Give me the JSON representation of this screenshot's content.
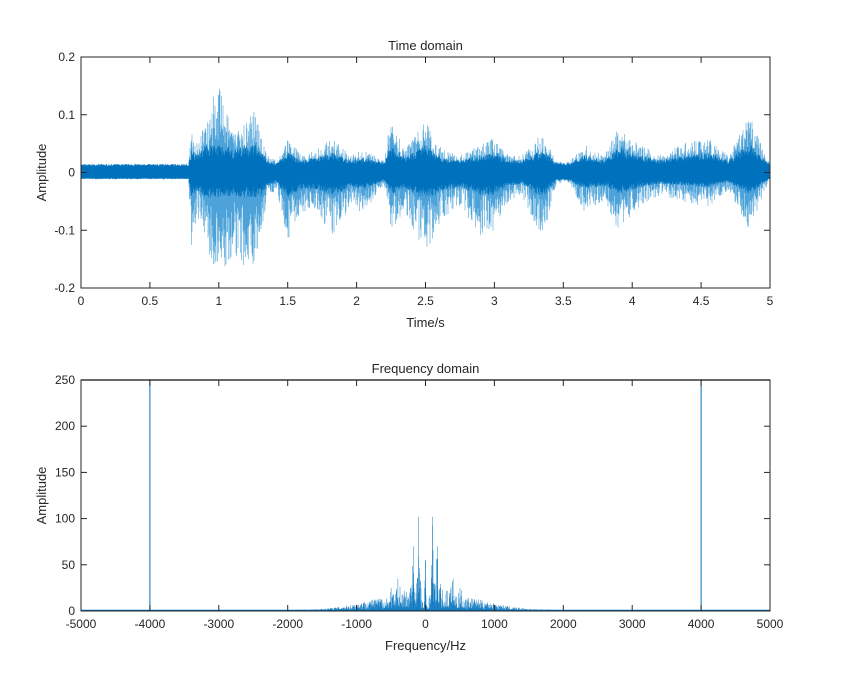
{
  "colors": {
    "line": "#0072BD",
    "line_light": "#4DA3D9",
    "axis": "#262626"
  },
  "chart_data": [
    {
      "type": "line",
      "title": "Time domain",
      "xlabel": "Time/s",
      "ylabel": "Amplitude",
      "xlim": [
        0,
        5
      ],
      "ylim": [
        -0.2,
        0.2
      ],
      "xticks": [
        0,
        0.5,
        1,
        1.5,
        2,
        2.5,
        3,
        3.5,
        4,
        4.5,
        5
      ],
      "xtick_labels": [
        "0",
        "0.5",
        "1",
        "1.5",
        "2",
        "2.5",
        "3",
        "3.5",
        "4",
        "4.5",
        "5"
      ],
      "yticks": [
        -0.2,
        -0.1,
        0,
        0.1,
        0.2
      ],
      "ytick_labels": [
        "-0.2",
        "-0.1",
        "0",
        "0.1",
        "0.2"
      ],
      "grid": false,
      "envelope": {
        "t": [
          0,
          0.78,
          0.8,
          0.85,
          0.95,
          1.0,
          1.1,
          1.2,
          1.27,
          1.35,
          1.42,
          1.5,
          1.6,
          1.7,
          1.83,
          1.95,
          2.05,
          2.2,
          2.25,
          2.35,
          2.5,
          2.62,
          2.75,
          2.9,
          3.0,
          3.1,
          3.2,
          3.35,
          3.45,
          3.55,
          3.65,
          3.8,
          3.9,
          4.05,
          4.2,
          4.35,
          4.55,
          4.7,
          4.85,
          4.95,
          5.0
        ],
        "upper": [
          0.015,
          0.015,
          0.07,
          0.05,
          0.13,
          0.15,
          0.07,
          0.09,
          0.11,
          0.03,
          0.02,
          0.06,
          0.03,
          0.04,
          0.06,
          0.03,
          0.04,
          0.02,
          0.1,
          0.04,
          0.09,
          0.04,
          0.03,
          0.05,
          0.06,
          0.03,
          0.03,
          0.07,
          0.02,
          0.02,
          0.05,
          0.03,
          0.08,
          0.05,
          0.03,
          0.05,
          0.06,
          0.03,
          0.1,
          0.04,
          0.015
        ],
        "lower": [
          -0.012,
          -0.012,
          -0.13,
          -0.08,
          -0.16,
          -0.2,
          -0.14,
          -0.17,
          -0.17,
          -0.05,
          -0.03,
          -0.12,
          -0.07,
          -0.07,
          -0.11,
          -0.06,
          -0.07,
          -0.02,
          -0.1,
          -0.07,
          -0.14,
          -0.08,
          -0.06,
          -0.11,
          -0.1,
          -0.05,
          -0.04,
          -0.12,
          -0.02,
          -0.02,
          -0.07,
          -0.05,
          -0.1,
          -0.06,
          -0.04,
          -0.05,
          -0.06,
          -0.03,
          -0.1,
          -0.04,
          -0.012
        ]
      }
    },
    {
      "type": "line",
      "title": "Frequency domain",
      "xlabel": "Frequency/Hz",
      "ylabel": "Amplitude",
      "xlim": [
        -5000,
        5000
      ],
      "ylim": [
        0,
        250
      ],
      "xticks": [
        -5000,
        -4000,
        -3000,
        -2000,
        -1000,
        0,
        1000,
        2000,
        3000,
        4000,
        5000
      ],
      "xtick_labels": [
        "-5000",
        "-4000",
        "-3000",
        "-2000",
        "-1000",
        "0",
        "1000",
        "2000",
        "3000",
        "4000",
        "5000"
      ],
      "yticks": [
        0,
        50,
        100,
        150,
        200,
        250
      ],
      "ytick_labels": [
        "0",
        "50",
        "100",
        "150",
        "200",
        "250"
      ],
      "grid": false,
      "envelope": {
        "f": [
          0,
          20,
          60,
          100,
          130,
          175,
          220,
          300,
          400,
          450,
          500,
          600,
          800,
          1000,
          1150,
          1300,
          1600,
          2000,
          3000,
          5000
        ],
        "amp": [
          55,
          10,
          20,
          102,
          30,
          70,
          25,
          22,
          35,
          18,
          25,
          15,
          12,
          8,
          6,
          4,
          2,
          1,
          0.8,
          0.8
        ]
      },
      "spikes": [
        {
          "f": -4000,
          "amp": 260
        },
        {
          "f": 4000,
          "amp": 260
        }
      ]
    }
  ]
}
